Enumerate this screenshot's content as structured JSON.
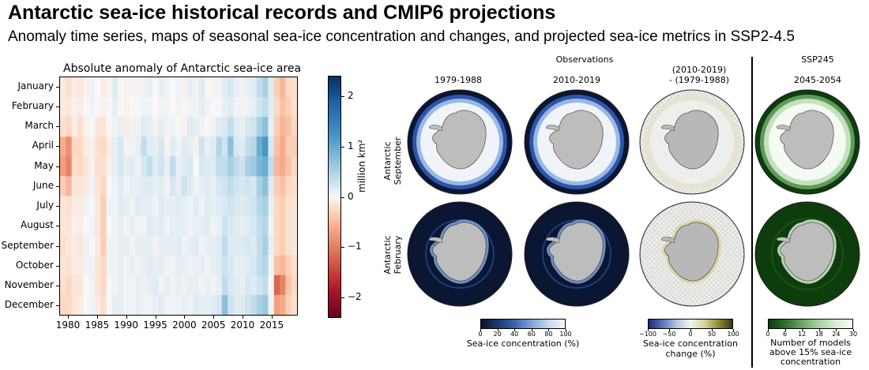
{
  "slide": {
    "title": "Antarctic sea-ice historical records and CMIP6 projections",
    "subtitle": "Anomaly time series, maps of seasonal sea-ice concentration and changes, and projected sea-ice metrics in SSP2-4.5"
  },
  "chart_data": [
    {
      "type": "heatmap",
      "title": "Absolute anomaly of Antarctic sea-ice area",
      "x": [
        1979,
        1980,
        1981,
        1982,
        1983,
        1984,
        1985,
        1986,
        1987,
        1988,
        1989,
        1990,
        1991,
        1992,
        1993,
        1994,
        1995,
        1996,
        1997,
        1998,
        1999,
        2000,
        2001,
        2002,
        2003,
        2004,
        2005,
        2006,
        2007,
        2008,
        2009,
        2010,
        2011,
        2012,
        2013,
        2014,
        2015,
        2016,
        2017,
        2018,
        2019
      ],
      "x_ticks": [
        "1980",
        "1985",
        "1990",
        "1995",
        "2000",
        "2005",
        "2010",
        "2015"
      ],
      "y": [
        "January",
        "February",
        "March",
        "April",
        "May",
        "June",
        "July",
        "August",
        "September",
        "October",
        "November",
        "December"
      ],
      "colorbar": {
        "label": "million km²",
        "ticks": [
          "2",
          "1",
          "0",
          "−1",
          "−2"
        ],
        "range": [
          -2.4,
          2.4
        ],
        "colors": [
          "#67001f",
          "#b2182b",
          "#d6604d",
          "#f4a582",
          "#fddbc7",
          "#f7f7f7",
          "#d1e5f0",
          "#92c5de",
          "#4393c3",
          "#2166ac",
          "#053061"
        ]
      },
      "values": [
        [
          -0.2,
          -0.4,
          -0.2,
          -0.3,
          -0.1,
          0.1,
          0.0,
          -0.2,
          -0.1,
          0.3,
          0.0,
          -0.1,
          0.1,
          -0.1,
          0.1,
          0.2,
          0.0,
          0.2,
          0.1,
          0.0,
          0.1,
          -0.1,
          0.2,
          0.1,
          0.3,
          0.0,
          -0.1,
          0.1,
          0.3,
          0.4,
          0.2,
          0.1,
          0.2,
          0.3,
          0.6,
          0.8,
          0.3,
          -0.6,
          -0.8,
          -0.5,
          -0.4
        ],
        [
          -0.2,
          -0.3,
          -0.1,
          -0.2,
          0.0,
          0.1,
          0.0,
          -0.1,
          0.0,
          0.2,
          0.0,
          -0.1,
          0.0,
          0.0,
          0.1,
          0.1,
          0.0,
          0.1,
          0.1,
          0.0,
          0.1,
          0.0,
          0.1,
          0.1,
          0.2,
          0.1,
          0.0,
          0.0,
          0.2,
          0.3,
          0.1,
          0.1,
          0.1,
          0.2,
          0.5,
          0.6,
          0.3,
          -0.5,
          -0.7,
          -0.6,
          -0.4
        ],
        [
          -0.4,
          -0.5,
          -0.2,
          -0.4,
          -0.1,
          0.0,
          -0.3,
          -0.3,
          0.0,
          0.1,
          0.2,
          -0.2,
          0.1,
          0.1,
          0.3,
          0.2,
          -0.1,
          0.2,
          0.1,
          0.1,
          0.0,
          -0.1,
          0.3,
          0.2,
          0.1,
          0.0,
          0.1,
          0.3,
          0.4,
          0.6,
          0.3,
          0.2,
          0.4,
          0.5,
          0.8,
          1.0,
          0.2,
          -0.6,
          -0.8,
          -0.7,
          -0.5
        ],
        [
          -0.9,
          -1.1,
          -0.5,
          -0.5,
          -0.2,
          -0.1,
          -0.4,
          -0.5,
          -0.2,
          0.2,
          0.4,
          0.1,
          0.1,
          0.2,
          0.6,
          0.3,
          0.2,
          0.4,
          -0.1,
          0.3,
          0.1,
          0.3,
          0.2,
          -0.1,
          0.5,
          0.2,
          0.3,
          0.7,
          0.5,
          1.0,
          0.4,
          0.3,
          0.6,
          0.7,
          1.2,
          1.4,
          0.4,
          -0.7,
          -0.9,
          -0.6,
          -0.6
        ],
        [
          -1.0,
          -1.2,
          -0.4,
          -0.5,
          -0.3,
          -0.1,
          -0.4,
          -0.4,
          -0.1,
          0.2,
          0.4,
          0.2,
          0.3,
          0.1,
          0.4,
          0.6,
          0.3,
          0.5,
          0.2,
          0.6,
          0.2,
          0.3,
          0.4,
          0.0,
          0.4,
          0.3,
          0.3,
          0.6,
          0.6,
          0.8,
          0.6,
          0.5,
          0.8,
          0.9,
          1.1,
          1.2,
          0.6,
          -0.8,
          -0.9,
          -0.7,
          -0.5
        ],
        [
          -0.6,
          -0.8,
          -0.3,
          -0.3,
          -0.2,
          0.1,
          -0.3,
          -0.5,
          0.0,
          0.1,
          0.3,
          0.1,
          0.2,
          0.2,
          0.3,
          0.3,
          0.2,
          0.3,
          0.1,
          0.4,
          0.2,
          0.5,
          0.3,
          0.1,
          0.2,
          0.3,
          0.2,
          0.4,
          0.5,
          0.6,
          0.5,
          0.4,
          0.5,
          0.4,
          0.8,
          1.0,
          0.3,
          -0.6,
          -0.7,
          -0.5,
          -0.4
        ],
        [
          -0.3,
          -0.4,
          -0.2,
          -0.2,
          0.1,
          0.0,
          -0.3,
          -0.6,
          0.1,
          0.1,
          0.3,
          0.2,
          0.1,
          0.3,
          0.2,
          0.2,
          0.1,
          0.3,
          0.2,
          0.2,
          0.3,
          0.2,
          0.1,
          0.3,
          0.1,
          0.3,
          0.2,
          0.3,
          0.4,
          0.5,
          0.4,
          0.3,
          0.4,
          0.5,
          0.7,
          0.8,
          0.2,
          -0.5,
          -0.6,
          -0.4,
          -0.3
        ],
        [
          -0.3,
          -0.3,
          -0.1,
          -0.2,
          0.0,
          0.1,
          -0.3,
          -0.6,
          0.0,
          0.1,
          0.2,
          0.1,
          0.2,
          0.1,
          0.1,
          0.3,
          0.2,
          0.3,
          0.1,
          0.2,
          0.2,
          0.2,
          0.1,
          0.2,
          0.2,
          0.3,
          0.1,
          0.2,
          0.5,
          0.4,
          0.3,
          0.2,
          0.3,
          0.4,
          0.6,
          0.7,
          0.1,
          -0.5,
          -0.6,
          -0.4,
          -0.3
        ],
        [
          -0.4,
          -0.3,
          -0.2,
          -0.3,
          0.1,
          0.0,
          -0.2,
          -0.6,
          0.1,
          0.1,
          0.2,
          0.2,
          0.1,
          0.2,
          0.2,
          0.2,
          0.1,
          0.2,
          0.2,
          0.2,
          0.3,
          0.1,
          0.2,
          0.3,
          0.1,
          0.2,
          0.2,
          0.3,
          0.6,
          0.3,
          0.3,
          0.3,
          0.4,
          0.3,
          0.6,
          0.8,
          0.2,
          -0.5,
          -0.6,
          -0.4,
          -0.3
        ],
        [
          -0.3,
          -0.4,
          -0.2,
          -0.2,
          0.1,
          0.1,
          -0.3,
          -0.5,
          0.1,
          0.1,
          0.2,
          0.1,
          0.2,
          0.1,
          0.2,
          0.3,
          0.2,
          0.2,
          0.1,
          0.1,
          0.2,
          0.2,
          0.1,
          0.2,
          0.2,
          0.1,
          0.2,
          0.3,
          0.5,
          0.4,
          0.2,
          0.2,
          0.3,
          0.4,
          0.6,
          0.7,
          0.1,
          -0.7,
          -0.8,
          -0.6,
          -0.4
        ],
        [
          -0.4,
          -0.5,
          -0.3,
          -0.3,
          0.0,
          0.1,
          -0.3,
          -0.5,
          0.0,
          0.1,
          0.2,
          0.1,
          0.1,
          0.2,
          0.1,
          0.2,
          0.3,
          0.1,
          0.2,
          0.1,
          0.2,
          0.1,
          0.2,
          0.2,
          0.1,
          0.2,
          0.1,
          0.2,
          0.6,
          0.4,
          0.3,
          0.2,
          0.4,
          0.3,
          0.5,
          0.6,
          0.0,
          -1.4,
          -1.2,
          -0.7,
          -0.5
        ],
        [
          -0.5,
          -0.5,
          -0.3,
          -0.2,
          0.0,
          0.1,
          -0.2,
          -0.4,
          0.0,
          0.2,
          0.2,
          0.1,
          0.1,
          0.2,
          0.1,
          0.1,
          0.2,
          0.3,
          0.1,
          0.1,
          0.1,
          0.2,
          0.1,
          0.3,
          0.2,
          0.2,
          0.3,
          0.4,
          1.0,
          0.5,
          0.3,
          0.3,
          0.5,
          0.6,
          0.8,
          0.9,
          0.1,
          -1.0,
          -0.9,
          -0.6,
          -0.4
        ]
      ]
    },
    {
      "type": "other",
      "header_observations": "Observations",
      "header_diff": "(2010-2019)\n- (1979-1988)",
      "header_ssp": "SSP245",
      "columns": [
        "1979-1988",
        "2010-2019",
        "",
        "2045-2054"
      ],
      "rows": [
        "Antarctic\nSeptember",
        "Antarctic\nFebruary"
      ],
      "colorbars": [
        {
          "ticks": [
            "0",
            "20",
            "40",
            "60",
            "80",
            "100"
          ],
          "label": "Sea-ice concentration (%)",
          "colors": [
            "#08132c",
            "#1a3a6e",
            "#3a64b0",
            "#7fa3d8",
            "#c6d7ee",
            "#f4f6fb"
          ]
        },
        {
          "ticks": [
            "−100",
            "−50",
            "0",
            "50",
            "100"
          ],
          "label": "Sea-ice concentration\nchange (%)",
          "colors": [
            "#1b2a6b",
            "#5775bd",
            "#b3c3e0",
            "#f3f3ee",
            "#d9d49b",
            "#8f8a35",
            "#3b3a13"
          ]
        },
        {
          "ticks": [
            "0",
            "6",
            "12",
            "18",
            "24",
            "30"
          ],
          "label": "Number of models\nabove 15% sea-ice\nconcentration",
          "colors": [
            "#0c3d0c",
            "#2f6f2c",
            "#6aa564",
            "#a9d0a2",
            "#daeed6",
            "#f7fbf6"
          ]
        }
      ]
    }
  ]
}
